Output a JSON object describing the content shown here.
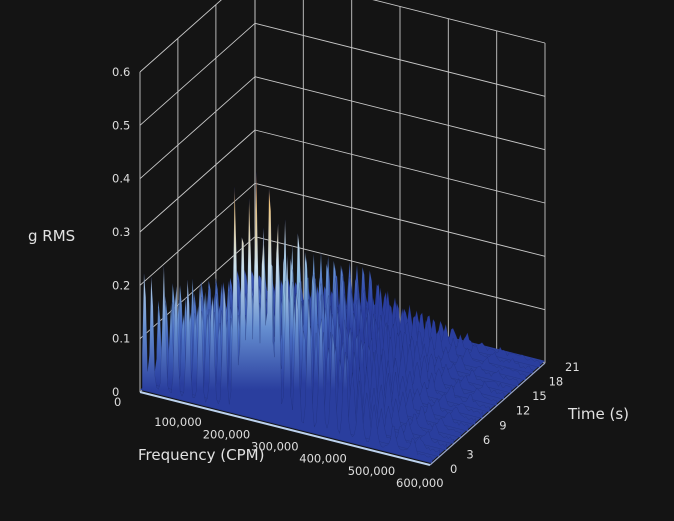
{
  "chart_data": {
    "type": "surface3d",
    "title": "",
    "xlabel": "Frequency (CPM)",
    "ylabel": "Time (s)",
    "zlabel": "g RMS",
    "xlim": [
      0,
      600000
    ],
    "ylim": [
      0,
      21
    ],
    "zlim": [
      0,
      0.6
    ],
    "x_ticks": [
      "0",
      "100,000",
      "200,000",
      "300,000",
      "400,000",
      "500,000",
      "600,000"
    ],
    "y_ticks": [
      "0",
      "3",
      "6",
      "9",
      "12",
      "15",
      "18",
      "21"
    ],
    "z_ticks": [
      "0",
      "0.1",
      "0.2",
      "0.3",
      "0.4",
      "0.5",
      "0.6"
    ],
    "grid": true,
    "background": "#141414",
    "colormap": [
      "#2a3e9e",
      "#4a6fc4",
      "#8fc0e2",
      "#dcecf2",
      "#f3d58a",
      "#e8823f",
      "#c9302a"
    ],
    "peaks": [
      {
        "freq": 5000,
        "z": 0.25
      },
      {
        "freq": 20000,
        "z": 0.24
      },
      {
        "freq": 45000,
        "z": 0.25
      },
      {
        "freq": 70000,
        "z": 0.24
      },
      {
        "freq": 95000,
        "z": 0.25
      },
      {
        "freq": 120000,
        "z": 0.24
      },
      {
        "freq": 145000,
        "z": 0.23
      },
      {
        "freq": 170000,
        "z": 0.26
      },
      {
        "freq": 192000,
        "z": 0.46
      },
      {
        "freq": 208000,
        "z": 0.4
      },
      {
        "freq": 222000,
        "z": 0.44
      },
      {
        "freq": 236000,
        "z": 0.49
      },
      {
        "freq": 250000,
        "z": 0.38
      },
      {
        "freq": 264000,
        "z": 0.5
      },
      {
        "freq": 280000,
        "z": 0.42
      },
      {
        "freq": 300000,
        "z": 0.34
      },
      {
        "freq": 320000,
        "z": 0.28
      },
      {
        "freq": 345000,
        "z": 0.26
      },
      {
        "freq": 370000,
        "z": 0.24
      },
      {
        "freq": 395000,
        "z": 0.21
      },
      {
        "freq": 420000,
        "z": 0.17
      },
      {
        "freq": 450000,
        "z": 0.12
      },
      {
        "freq": 480000,
        "z": 0.08
      },
      {
        "freq": 520000,
        "z": 0.05
      },
      {
        "freq": 560000,
        "z": 0.03
      }
    ]
  }
}
